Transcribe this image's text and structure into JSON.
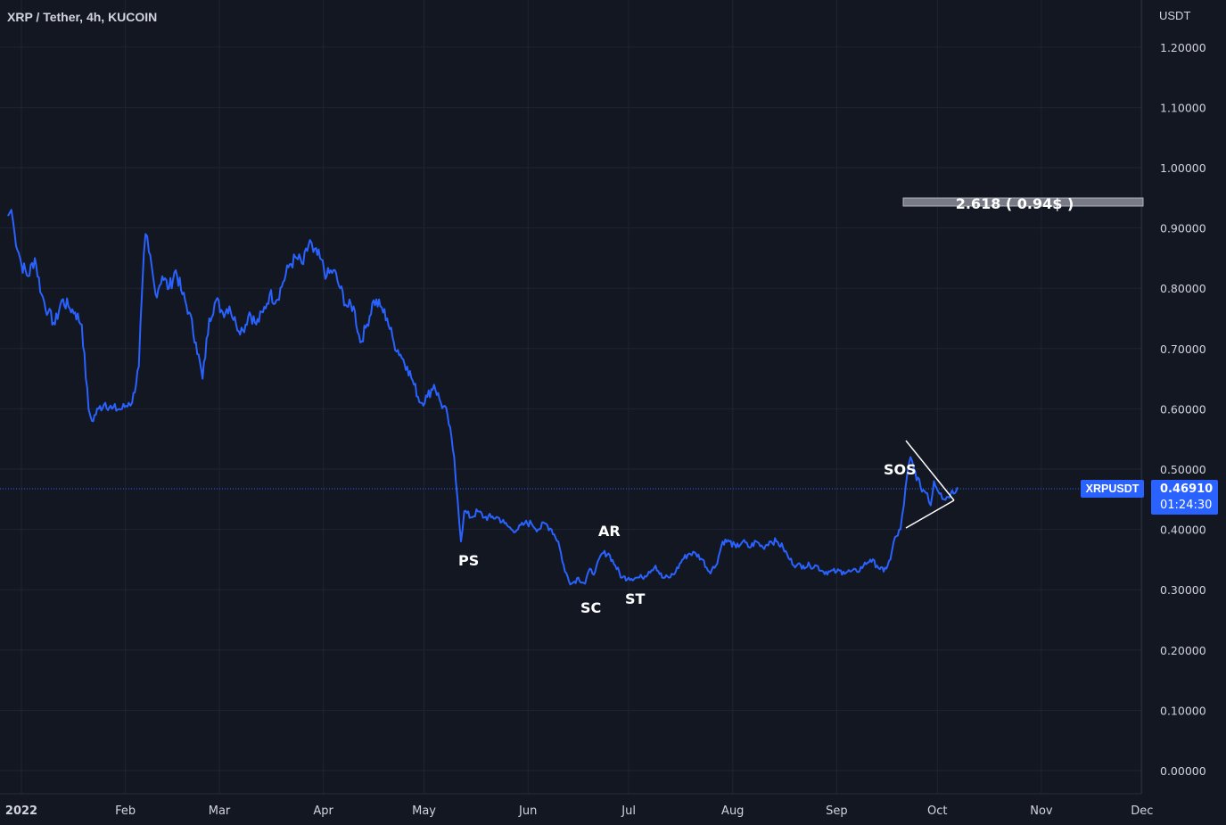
{
  "header": {
    "title": "XRP / Tether, 4h, KUCOIN",
    "currency": "USDT"
  },
  "symbol_tag": "XRPUSDT",
  "last_price": "0.46910",
  "countdown": "01:24:30",
  "colors": {
    "background": "#131722",
    "grid": "#1f2433",
    "line": "#2962ff",
    "text": "#d1d4dc",
    "tag": "#2962ff"
  },
  "fib_label": "2.618 ( 0.94$ )",
  "annotations": {
    "ps": "PS",
    "sc": "SC",
    "ar": "AR",
    "st": "ST",
    "sos": "SOS"
  },
  "chart_data": {
    "type": "line",
    "title": "XRP / Tether, 4h, KUCOIN",
    "ylabel": "USDT",
    "ylim": [
      0,
      1.25
    ],
    "y_ticks": [
      "1.20000",
      "1.10000",
      "1.00000",
      "0.90000",
      "0.80000",
      "0.70000",
      "0.60000",
      "0.50000",
      "0.40000",
      "0.30000",
      "0.20000",
      "0.10000",
      "0.00000"
    ],
    "x_ticks": [
      "2022",
      "Feb",
      "Mar",
      "Apr",
      "May",
      "Jun",
      "Jul",
      "Aug",
      "Sep",
      "Oct",
      "Nov",
      "Dec"
    ],
    "grid": true,
    "series": [
      {
        "name": "XRPUSDT",
        "points": [
          [
            "2021-12-28",
            0.92
          ],
          [
            "2021-12-29",
            0.93
          ],
          [
            "2021-12-30",
            0.89
          ],
          [
            "2022-01-01",
            0.84
          ],
          [
            "2022-01-03",
            0.82
          ],
          [
            "2022-01-05",
            0.85
          ],
          [
            "2022-01-07",
            0.79
          ],
          [
            "2022-01-09",
            0.76
          ],
          [
            "2022-01-11",
            0.74
          ],
          [
            "2022-01-13",
            0.78
          ],
          [
            "2022-01-15",
            0.77
          ],
          [
            "2022-01-17",
            0.76
          ],
          [
            "2022-01-19",
            0.74
          ],
          [
            "2022-01-21",
            0.6
          ],
          [
            "2022-01-22",
            0.58
          ],
          [
            "2022-01-24",
            0.6
          ],
          [
            "2022-01-26",
            0.61
          ],
          [
            "2022-01-28",
            0.6
          ],
          [
            "2022-01-31",
            0.6
          ],
          [
            "2022-02-02",
            0.61
          ],
          [
            "2022-02-03",
            0.61
          ],
          [
            "2022-02-05",
            0.67
          ],
          [
            "2022-02-06",
            0.8
          ],
          [
            "2022-02-07",
            0.89
          ],
          [
            "2022-02-08",
            0.86
          ],
          [
            "2022-02-10",
            0.79
          ],
          [
            "2022-02-12",
            0.82
          ],
          [
            "2022-02-14",
            0.8
          ],
          [
            "2022-02-16",
            0.83
          ],
          [
            "2022-02-18",
            0.79
          ],
          [
            "2022-02-20",
            0.76
          ],
          [
            "2022-02-22",
            0.71
          ],
          [
            "2022-02-24",
            0.65
          ],
          [
            "2022-02-26",
            0.75
          ],
          [
            "2022-02-28",
            0.78
          ],
          [
            "2022-03-02",
            0.76
          ],
          [
            "2022-03-04",
            0.77
          ],
          [
            "2022-03-06",
            0.74
          ],
          [
            "2022-03-08",
            0.73
          ],
          [
            "2022-03-10",
            0.76
          ],
          [
            "2022-03-12",
            0.74
          ],
          [
            "2022-03-14",
            0.76
          ],
          [
            "2022-03-16",
            0.79
          ],
          [
            "2022-03-18",
            0.78
          ],
          [
            "2022-03-20",
            0.81
          ],
          [
            "2022-03-22",
            0.84
          ],
          [
            "2022-03-24",
            0.85
          ],
          [
            "2022-03-26",
            0.84
          ],
          [
            "2022-03-28",
            0.88
          ],
          [
            "2022-03-29",
            0.86
          ],
          [
            "2022-03-31",
            0.85
          ],
          [
            "2022-04-02",
            0.82
          ],
          [
            "2022-04-04",
            0.83
          ],
          [
            "2022-04-06",
            0.8
          ],
          [
            "2022-04-08",
            0.77
          ],
          [
            "2022-04-10",
            0.77
          ],
          [
            "2022-04-12",
            0.71
          ],
          [
            "2022-04-14",
            0.74
          ],
          [
            "2022-04-16",
            0.78
          ],
          [
            "2022-04-18",
            0.77
          ],
          [
            "2022-04-20",
            0.75
          ],
          [
            "2022-04-22",
            0.71
          ],
          [
            "2022-04-24",
            0.69
          ],
          [
            "2022-04-26",
            0.67
          ],
          [
            "2022-04-28",
            0.64
          ],
          [
            "2022-04-30",
            0.61
          ],
          [
            "2022-05-02",
            0.62
          ],
          [
            "2022-05-04",
            0.64
          ],
          [
            "2022-05-06",
            0.61
          ],
          [
            "2022-05-08",
            0.59
          ],
          [
            "2022-05-10",
            0.52
          ],
          [
            "2022-05-11",
            0.45
          ],
          [
            "2022-05-12",
            0.38
          ],
          [
            "2022-05-13",
            0.43
          ],
          [
            "2022-05-15",
            0.42
          ],
          [
            "2022-05-17",
            0.43
          ],
          [
            "2022-05-19",
            0.42
          ],
          [
            "2022-05-21",
            0.42
          ],
          [
            "2022-05-23",
            0.42
          ],
          [
            "2022-05-25",
            0.41
          ],
          [
            "2022-05-27",
            0.4
          ],
          [
            "2022-05-29",
            0.4
          ],
          [
            "2022-05-31",
            0.41
          ],
          [
            "2022-06-02",
            0.41
          ],
          [
            "2022-06-04",
            0.4
          ],
          [
            "2022-06-06",
            0.41
          ],
          [
            "2022-06-08",
            0.4
          ],
          [
            "2022-06-10",
            0.38
          ],
          [
            "2022-06-12",
            0.33
          ],
          [
            "2022-06-14",
            0.31
          ],
          [
            "2022-06-16",
            0.32
          ],
          [
            "2022-06-18",
            0.31
          ],
          [
            "2022-06-19",
            0.33
          ],
          [
            "2022-06-21",
            0.33
          ],
          [
            "2022-06-23",
            0.36
          ],
          [
            "2022-06-25",
            0.36
          ],
          [
            "2022-06-27",
            0.34
          ],
          [
            "2022-06-29",
            0.32
          ],
          [
            "2022-07-01",
            0.32
          ],
          [
            "2022-07-03",
            0.32
          ],
          [
            "2022-07-05",
            0.32
          ],
          [
            "2022-07-07",
            0.33
          ],
          [
            "2022-07-09",
            0.34
          ],
          [
            "2022-07-11",
            0.32
          ],
          [
            "2022-07-13",
            0.32
          ],
          [
            "2022-07-15",
            0.33
          ],
          [
            "2022-07-17",
            0.35
          ],
          [
            "2022-07-19",
            0.36
          ],
          [
            "2022-07-21",
            0.36
          ],
          [
            "2022-07-23",
            0.35
          ],
          [
            "2022-07-25",
            0.33
          ],
          [
            "2022-07-27",
            0.34
          ],
          [
            "2022-07-29",
            0.38
          ],
          [
            "2022-07-31",
            0.38
          ],
          [
            "2022-08-02",
            0.37
          ],
          [
            "2022-08-04",
            0.38
          ],
          [
            "2022-08-06",
            0.37
          ],
          [
            "2022-08-08",
            0.38
          ],
          [
            "2022-08-10",
            0.37
          ],
          [
            "2022-08-12",
            0.38
          ],
          [
            "2022-08-14",
            0.38
          ],
          [
            "2022-08-16",
            0.37
          ],
          [
            "2022-08-18",
            0.35
          ],
          [
            "2022-08-20",
            0.34
          ],
          [
            "2022-08-22",
            0.34
          ],
          [
            "2022-08-24",
            0.34
          ],
          [
            "2022-08-26",
            0.34
          ],
          [
            "2022-08-28",
            0.33
          ],
          [
            "2022-08-30",
            0.33
          ],
          [
            "2022-09-01",
            0.33
          ],
          [
            "2022-09-03",
            0.33
          ],
          [
            "2022-09-05",
            0.33
          ],
          [
            "2022-09-07",
            0.33
          ],
          [
            "2022-09-09",
            0.34
          ],
          [
            "2022-09-11",
            0.35
          ],
          [
            "2022-09-13",
            0.34
          ],
          [
            "2022-09-15",
            0.33
          ],
          [
            "2022-09-17",
            0.35
          ],
          [
            "2022-09-18",
            0.38
          ],
          [
            "2022-09-20",
            0.4
          ],
          [
            "2022-09-21",
            0.44
          ],
          [
            "2022-09-22",
            0.49
          ],
          [
            "2022-09-23",
            0.52
          ],
          [
            "2022-09-24",
            0.5
          ],
          [
            "2022-09-26",
            0.47
          ],
          [
            "2022-09-28",
            0.46
          ],
          [
            "2022-09-29",
            0.44
          ],
          [
            "2022-09-30",
            0.48
          ],
          [
            "2022-10-02",
            0.46
          ],
          [
            "2022-10-03",
            0.45
          ],
          [
            "2022-10-05",
            0.46
          ],
          [
            "2022-10-07",
            0.47
          ]
        ]
      }
    ]
  }
}
